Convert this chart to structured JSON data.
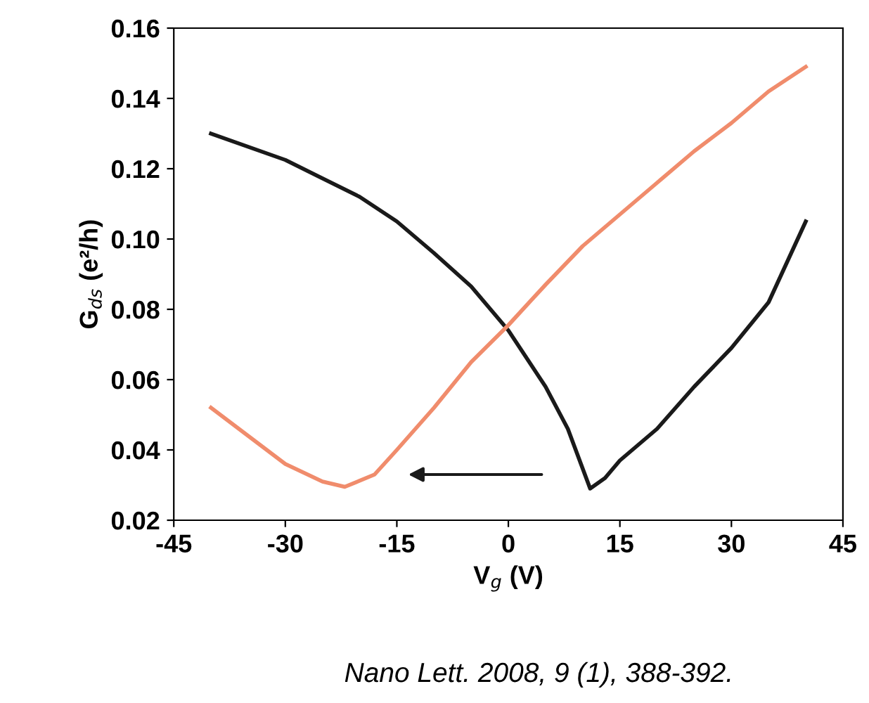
{
  "chart_data": {
    "type": "line",
    "xlabel": "V$_{g}$ (V)",
    "ylabel": "G$_{ds}$ (e²/h)",
    "xlim": [
      -45,
      45
    ],
    "xticks": [
      -45,
      -30,
      -15,
      0,
      15,
      30,
      45
    ],
    "ylim": [
      0.02,
      0.16
    ],
    "yticks": [
      {
        "value": 0.02,
        "label": "0.02"
      },
      {
        "value": 0.04,
        "label": "0.04"
      },
      {
        "value": 0.06,
        "label": "0.06"
      },
      {
        "value": 0.08,
        "label": "0.08"
      },
      {
        "value": 0.1,
        "label": "0.10"
      },
      {
        "value": 0.12,
        "label": "0.12"
      },
      {
        "value": 0.14,
        "label": "0.14"
      },
      {
        "value": 0.16,
        "label": "0.16"
      }
    ],
    "grid": false,
    "legend": false,
    "marker": "none",
    "line_style": "solid",
    "series": [
      {
        "color": "#1a1a1a",
        "x": [
          -40,
          -30,
          -20,
          -15,
          -10,
          -5,
          0,
          5,
          8,
          11,
          13,
          15,
          20,
          25,
          30,
          35,
          40
        ],
        "values": [
          0.13,
          0.1225,
          0.112,
          0.105,
          0.096,
          0.0865,
          0.074,
          0.058,
          0.046,
          0.029,
          0.032,
          0.037,
          0.046,
          0.058,
          0.069,
          0.082,
          0.105
        ]
      },
      {
        "color": "#f08c6c",
        "x": [
          -40,
          -35,
          -30,
          -25,
          -22,
          -18,
          -15,
          -10,
          -5,
          0,
          5,
          10,
          15,
          20,
          25,
          30,
          35,
          40
        ],
        "values": [
          0.052,
          0.044,
          0.036,
          0.031,
          0.0295,
          0.033,
          0.04,
          0.052,
          0.065,
          0.0755,
          0.087,
          0.098,
          0.107,
          0.116,
          0.125,
          0.133,
          0.142,
          0.149
        ]
      }
    ],
    "annotations": [
      "Nano Lett. 2008, 9 (1), 388-392."
    ]
  }
}
